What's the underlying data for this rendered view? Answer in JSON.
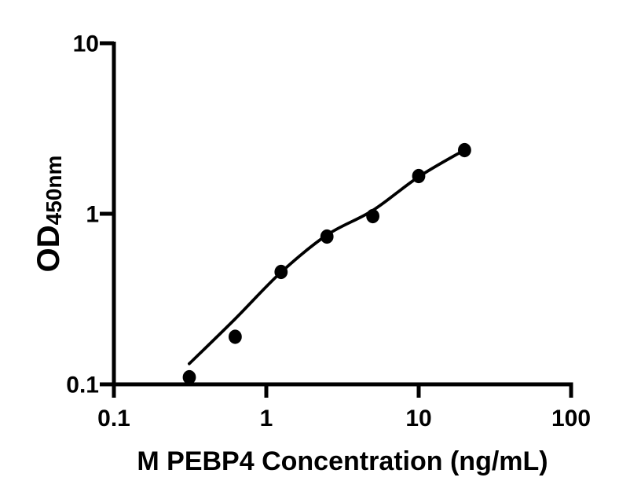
{
  "figure": {
    "background_color": "#ffffff",
    "foreground_color": "#000000"
  },
  "chart_data": {
    "type": "scatter",
    "title": "",
    "xlabel": "M PEBP4 Concentration (ng/mL)",
    "ylabel_main": "OD",
    "ylabel_sub": "450nm",
    "x_scale": "log10",
    "y_scale": "log10",
    "xlim": [
      0.1,
      100
    ],
    "ylim": [
      0.1,
      10
    ],
    "x_ticks": [
      {
        "value": 0.1,
        "label": "0.1"
      },
      {
        "value": 1,
        "label": "1"
      },
      {
        "value": 10,
        "label": "10"
      },
      {
        "value": 100,
        "label": "100"
      }
    ],
    "y_ticks": [
      {
        "value": 10,
        "label": "10"
      },
      {
        "value": 1,
        "label": "1"
      },
      {
        "value": 0.1,
        "label": "0.1"
      }
    ],
    "grid": false,
    "legend": false,
    "axis_color": "#000000",
    "marker_color": "#000000",
    "line_color": "#000000",
    "points": [
      {
        "x": 0.3125,
        "y": 0.11
      },
      {
        "x": 0.625,
        "y": 0.19
      },
      {
        "x": 1.25,
        "y": 0.456
      },
      {
        "x": 2.5,
        "y": 0.735
      },
      {
        "x": 5,
        "y": 0.969
      },
      {
        "x": 10,
        "y": 1.664
      },
      {
        "x": 20,
        "y": 2.362
      }
    ],
    "fit_curve": {
      "points": [
        {
          "x": 0.312,
          "y": 0.132
        },
        {
          "x": 0.622,
          "y": 0.241
        },
        {
          "x": 1.24,
          "y": 0.451
        },
        {
          "x": 2.5,
          "y": 0.751
        },
        {
          "x": 4.97,
          "y": 1.043
        },
        {
          "x": 10.0,
          "y": 1.647
        },
        {
          "x": 19.9,
          "y": 2.362
        }
      ]
    }
  }
}
